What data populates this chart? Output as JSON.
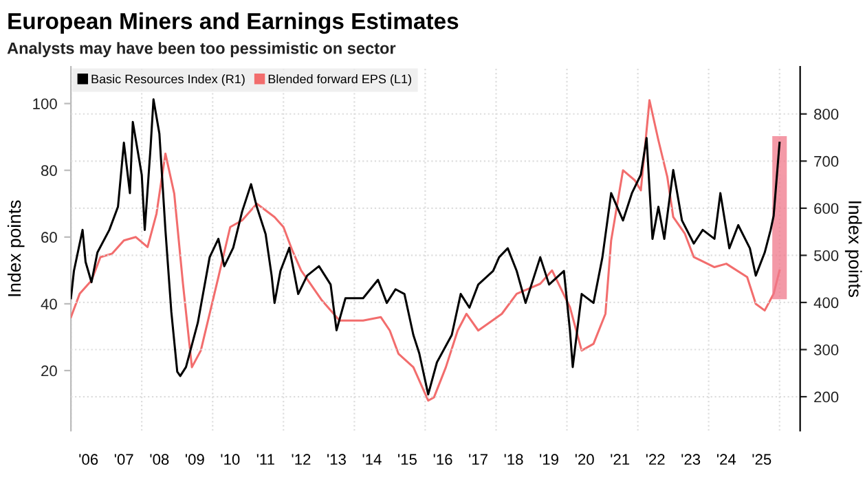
{
  "chart_data": {
    "type": "line",
    "title": "European Miners and Earnings Estimates",
    "subtitle": "Analysts may have been too pessimistic on sector",
    "ylabel": "Index points",
    "y2label": "Index points",
    "xlim": [
      "2006-01",
      "2026-08"
    ],
    "ylim": [
      2,
      111
    ],
    "yticks": [
      20,
      40,
      60,
      80,
      100
    ],
    "y2lim": [
      128,
      900
    ],
    "y2ticks": [
      200,
      300,
      400,
      500,
      600,
      700,
      800
    ],
    "xticks": [
      {
        "value": "2006-01",
        "label": null
      },
      {
        "value": "2006-07",
        "label": "'06"
      },
      {
        "value": "2007-07",
        "label": "'07"
      },
      {
        "value": "2008-01",
        "label": null
      },
      {
        "value": "2008-07",
        "label": "'08"
      },
      {
        "value": "2009-07",
        "label": "'09"
      },
      {
        "value": "2010-01",
        "label": null
      },
      {
        "value": "2010-07",
        "label": "'10"
      },
      {
        "value": "2011-07",
        "label": "'11"
      },
      {
        "value": "2012-01",
        "label": null
      },
      {
        "value": "2012-07",
        "label": "'12"
      },
      {
        "value": "2013-07",
        "label": "'13"
      },
      {
        "value": "2014-01",
        "label": null
      },
      {
        "value": "2014-07",
        "label": "'14"
      },
      {
        "value": "2015-07",
        "label": "'15"
      },
      {
        "value": "2016-01",
        "label": null
      },
      {
        "value": "2016-07",
        "label": "'16"
      },
      {
        "value": "2017-07",
        "label": "'17"
      },
      {
        "value": "2018-01",
        "label": null
      },
      {
        "value": "2018-07",
        "label": "'18"
      },
      {
        "value": "2019-07",
        "label": "'19"
      },
      {
        "value": "2020-01",
        "label": null
      },
      {
        "value": "2020-07",
        "label": "'20"
      },
      {
        "value": "2021-07",
        "label": "'21"
      },
      {
        "value": "2022-01",
        "label": null
      },
      {
        "value": "2022-07",
        "label": "'22"
      },
      {
        "value": "2023-07",
        "label": "'23"
      },
      {
        "value": "2024-01",
        "label": null
      },
      {
        "value": "2024-07",
        "label": "'24"
      },
      {
        "value": "2025-07",
        "label": "'25"
      },
      {
        "value": "2026-01",
        "label": null
      }
    ],
    "grid": true,
    "legend": "top left",
    "series": [
      {
        "type": "bar",
        "axis": "y2",
        "color": "#f0788a",
        "x": [
          "2026-01"
        ],
        "base": [
          409
        ],
        "values": [
          342
        ]
      },
      {
        "name": "Basic Resources Index (R1)",
        "axis": "y2",
        "color": "#000000",
        "x": [
          "2006-01",
          "2006-02",
          "2006-05",
          "2006-06",
          "2006-08",
          "2006-10",
          "2007-02",
          "2007-05",
          "2007-07",
          "2007-09",
          "2007-10",
          "2008-01",
          "2008-02",
          "2008-04",
          "2008-05",
          "2008-07",
          "2008-09",
          "2008-11",
          "2009-01",
          "2009-02",
          "2009-04",
          "2009-08",
          "2009-12",
          "2010-03",
          "2010-05",
          "2010-08",
          "2010-11",
          "2011-02",
          "2011-04",
          "2011-07",
          "2011-09",
          "2011-10",
          "2011-12",
          "2012-03",
          "2012-06",
          "2012-09",
          "2013-01",
          "2013-05",
          "2013-07",
          "2013-10",
          "2014-04",
          "2014-09",
          "2014-12",
          "2015-03",
          "2015-06",
          "2015-09",
          "2015-11",
          "2016-02",
          "2016-05",
          "2016-10",
          "2017-01",
          "2017-04",
          "2017-07",
          "2017-12",
          "2018-02",
          "2018-05",
          "2018-08",
          "2018-11",
          "2019-04",
          "2019-07",
          "2019-12",
          "2020-02",
          "2020-03",
          "2020-06",
          "2020-10",
          "2021-01",
          "2021-04",
          "2021-08",
          "2021-11",
          "2022-02",
          "2022-04",
          "2022-06",
          "2022-08",
          "2022-10",
          "2023-01",
          "2023-04",
          "2023-08",
          "2023-11",
          "2024-03",
          "2024-05",
          "2024-08",
          "2024-11",
          "2025-03",
          "2025-05",
          "2025-08",
          "2025-10",
          "2025-11",
          "2026-01"
        ],
        "values": [
          409,
          467,
          554,
          486,
          443,
          506,
          554,
          603,
          739,
          632,
          783,
          671,
          554,
          729,
          831,
          758,
          554,
          380,
          253,
          244,
          263,
          357,
          496,
          535,
          477,
          516,
          593,
          651,
          603,
          545,
          457,
          399,
          467,
          516,
          418,
          457,
          477,
          438,
          341,
          409,
          409,
          448,
          399,
          428,
          418,
          331,
          292,
          205,
          273,
          331,
          418,
          389,
          438,
          467,
          496,
          515,
          467,
          399,
          496,
          438,
          467,
          341,
          263,
          418,
          399,
          496,
          632,
          574,
          632,
          671,
          749,
          535,
          603,
          535,
          681,
          574,
          525,
          554,
          535,
          632,
          515,
          564,
          515,
          457,
          506,
          554,
          584,
          739
        ]
      },
      {
        "name": "Blended forward EPS (L1)",
        "color": "#f26d6d",
        "x": [
          "2006-01",
          "2006-04",
          "2006-08",
          "2006-11",
          "2007-03",
          "2007-07",
          "2007-11",
          "2008-03",
          "2008-06",
          "2008-09",
          "2008-12",
          "2009-03",
          "2009-06",
          "2009-09",
          "2010-03",
          "2010-07",
          "2010-11",
          "2011-04",
          "2011-10",
          "2012-01",
          "2012-04",
          "2012-07",
          "2013-02",
          "2013-08",
          "2014-04",
          "2014-10",
          "2015-01",
          "2015-04",
          "2015-09",
          "2016-02",
          "2016-04",
          "2016-08",
          "2016-12",
          "2017-03",
          "2017-07",
          "2018-03",
          "2018-08",
          "2019-04",
          "2019-08",
          "2020-02",
          "2020-06",
          "2020-10",
          "2021-02",
          "2021-04",
          "2021-08",
          "2021-12",
          "2022-02",
          "2022-05",
          "2022-08",
          "2022-11",
          "2023-01",
          "2023-05",
          "2023-08",
          "2024-03",
          "2024-07",
          "2025-02",
          "2025-05",
          "2025-08",
          "2025-11",
          "2026-01"
        ],
        "values": [
          36,
          43,
          47,
          54,
          55,
          59,
          60,
          57,
          67,
          85,
          73,
          46,
          21,
          26,
          48,
          63,
          65,
          70,
          66,
          63,
          56,
          50,
          41,
          35,
          35,
          36,
          32,
          25,
          21,
          11,
          12,
          21,
          32,
          37,
          32,
          37,
          43,
          46,
          50,
          39,
          26,
          28,
          37,
          59,
          80,
          77,
          74,
          101,
          89,
          78,
          66,
          61,
          54,
          51,
          52,
          48,
          40,
          38,
          43,
          50
        ]
      }
    ]
  }
}
